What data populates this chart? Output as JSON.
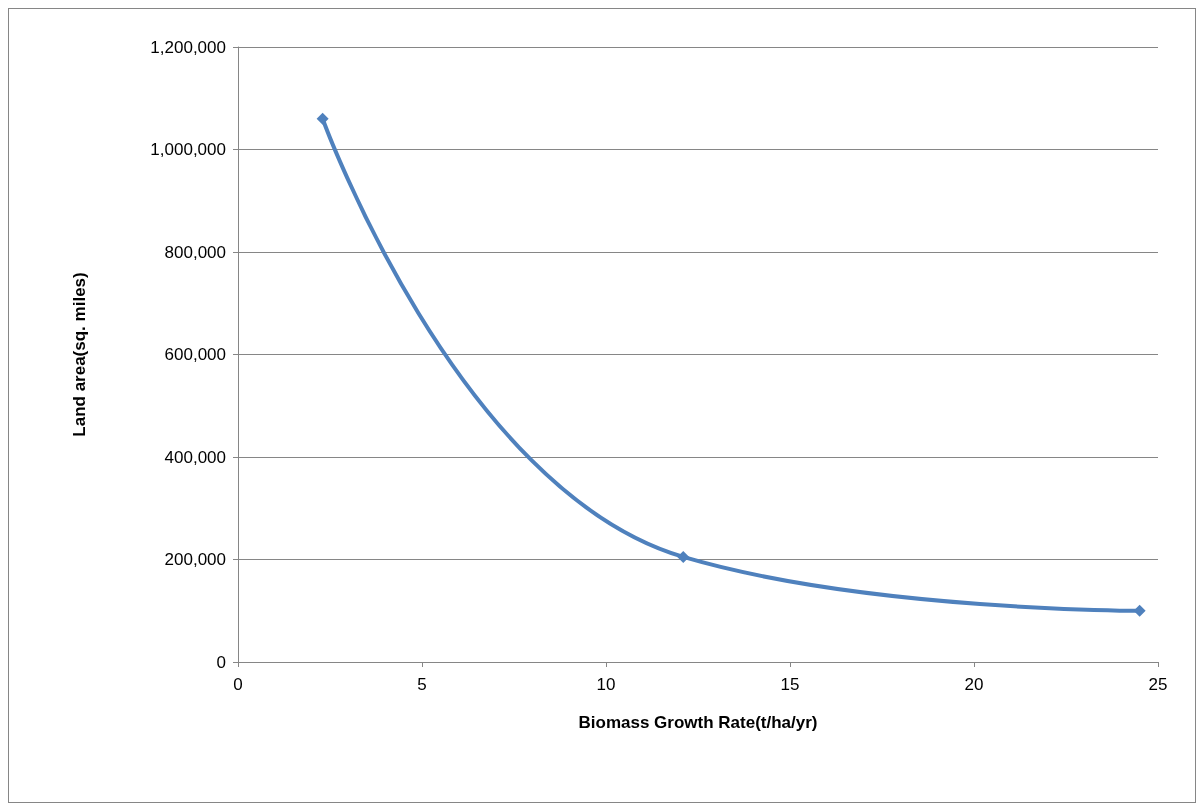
{
  "chart_data": {
    "type": "line",
    "xlabel": "Biomass Growth Rate(t/ha/yr)",
    "ylabel": "Land area(sq. miles)",
    "x": [
      2.3,
      12.1,
      24.5
    ],
    "series": [
      {
        "color": "#4f81bd",
        "values": [
          1060000,
          205000,
          100000
        ]
      }
    ],
    "xlim": [
      0,
      25
    ],
    "xticks": [
      0,
      5,
      10,
      15,
      20,
      25
    ],
    "ylim": [
      0,
      1200000
    ],
    "yticks": [
      0,
      {
        "value": 200000,
        "label": "200,000"
      },
      {
        "value": 400000,
        "label": "400,000"
      },
      {
        "value": 600000,
        "label": "600,000"
      },
      {
        "value": 800000,
        "label": "800,000"
      },
      {
        "value": 1000000,
        "label": "1,000,000"
      },
      {
        "value": 1200000,
        "label": "1,200,000"
      }
    ],
    "grid": "y",
    "marker": "diamond",
    "line_style": "solid"
  }
}
